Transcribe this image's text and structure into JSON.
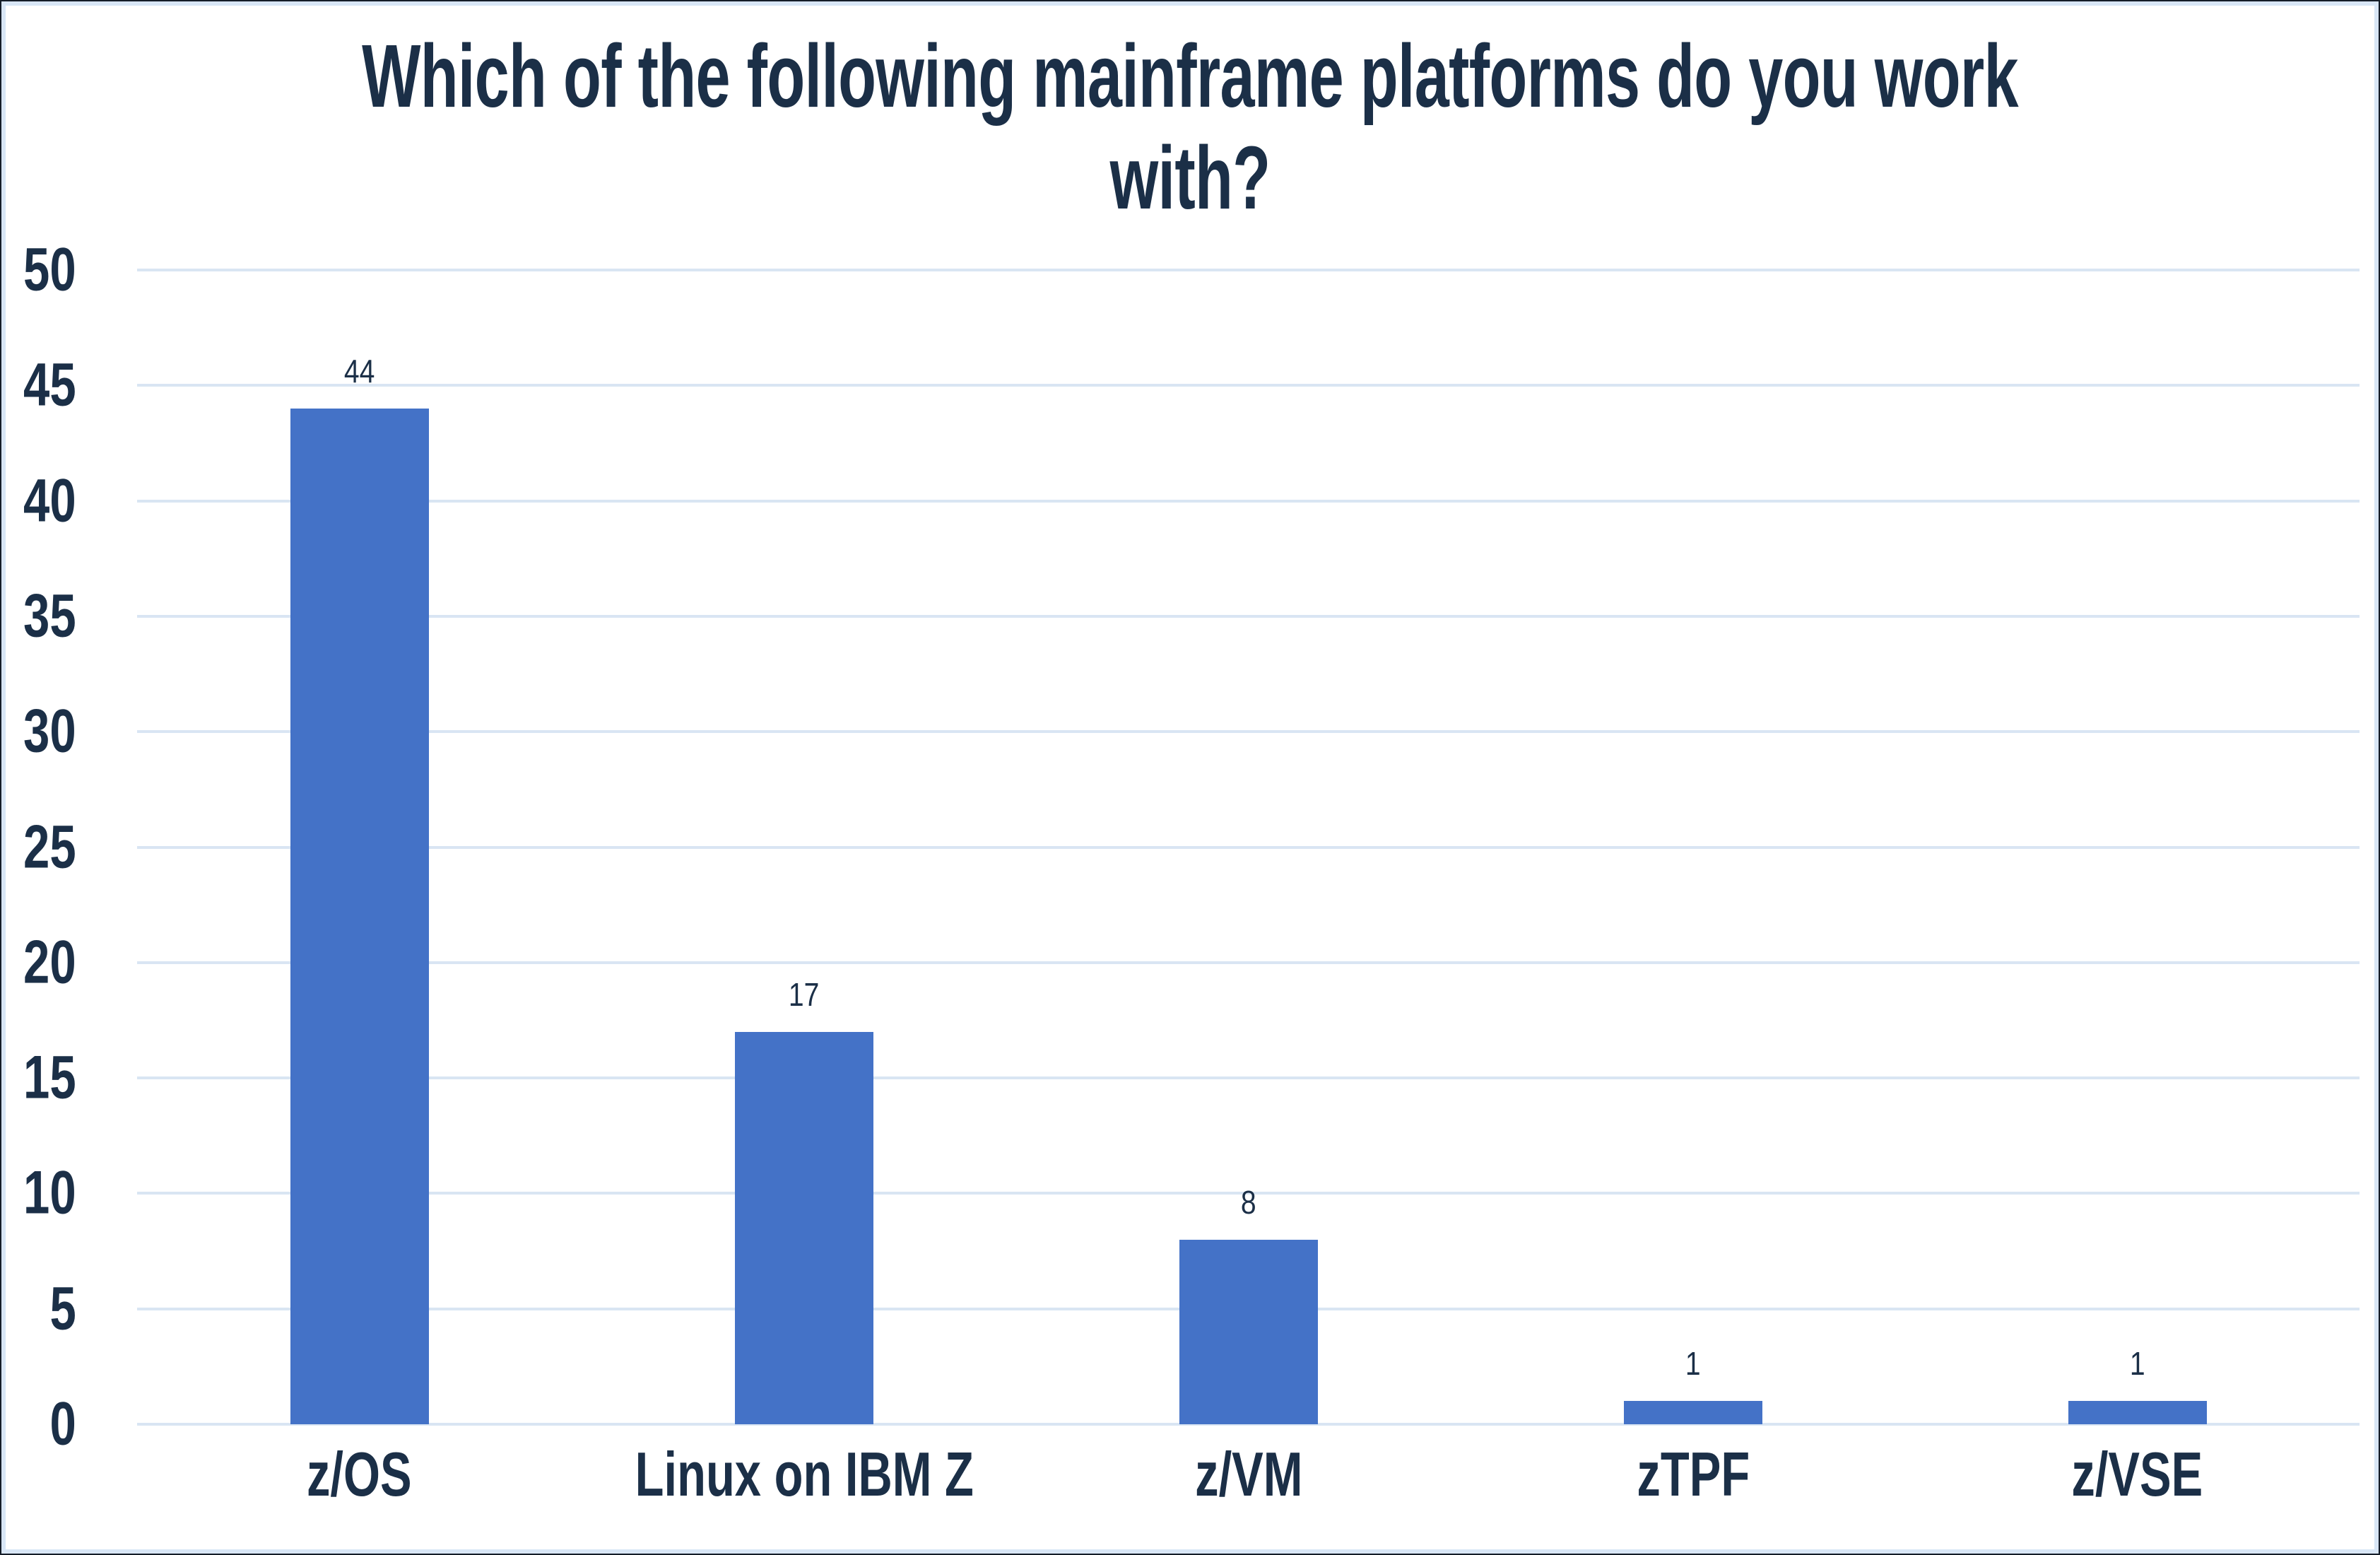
{
  "title": "Which of the following mainframe platforms do you work with?",
  "colors": {
    "bar": "#4472C7",
    "gridline": "#D9E5F3",
    "text": "#1B2F47",
    "value_label": "#1B2F47",
    "frame_outer": "#141D28",
    "frame_inner": "#D8E6F6",
    "background": "#FFFFFF"
  },
  "y_axis": {
    "ticks": [
      0,
      5,
      10,
      15,
      20,
      25,
      30,
      35,
      40,
      45,
      50
    ],
    "max": 50
  },
  "chart_data": {
    "type": "bar",
    "title": "Which of the following mainframe platforms do you work with?",
    "categories": [
      "z/OS",
      "Linux on IBM Z",
      "z/VM",
      "zTPF",
      "z/VSE"
    ],
    "values": [
      44,
      17,
      8,
      1,
      1
    ],
    "data_labels": [
      "44",
      "17",
      "8",
      "1",
      "1"
    ],
    "xlabel": "",
    "ylabel": "",
    "ylim": [
      0,
      50
    ],
    "ytick_interval": 5,
    "grid": true,
    "legend": false,
    "bar_color": "#4472C7",
    "gridline_color": "#D9E5F3",
    "text_color": "#1B2F47"
  }
}
